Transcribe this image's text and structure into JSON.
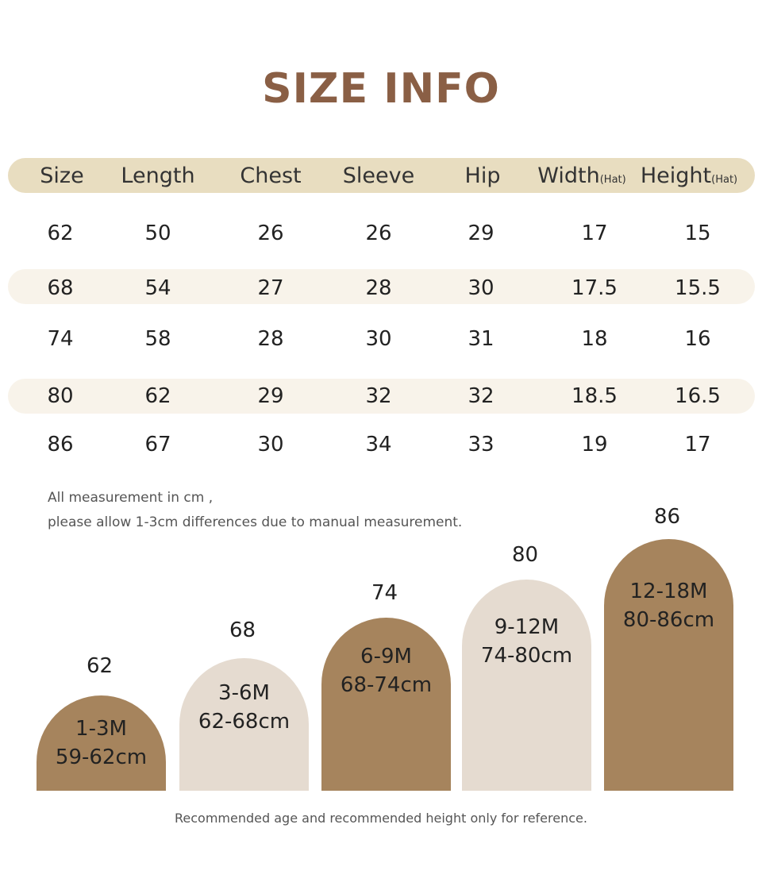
{
  "title": "SIZE INFO",
  "table": {
    "headers": [
      {
        "label": "Size",
        "sub": ""
      },
      {
        "label": "Length",
        "sub": ""
      },
      {
        "label": "Chest",
        "sub": ""
      },
      {
        "label": "Sleeve",
        "sub": ""
      },
      {
        "label": "Hip",
        "sub": ""
      },
      {
        "label": "Width",
        "sub": "(Hat)"
      },
      {
        "label": "Height",
        "sub": "(Hat)"
      }
    ],
    "rows": [
      [
        "62",
        "50",
        "26",
        "26",
        "29",
        "17",
        "15"
      ],
      [
        "68",
        "54",
        "27",
        "28",
        "30",
        "17.5",
        "15.5"
      ],
      [
        "74",
        "58",
        "28",
        "30",
        "31",
        "18",
        "16"
      ],
      [
        "80",
        "62",
        "29",
        "32",
        "32",
        "18.5",
        "16.5"
      ],
      [
        "86",
        "67",
        "30",
        "34",
        "33",
        "19",
        "17"
      ]
    ]
  },
  "notes": {
    "line1": "All measurement in cm ,",
    "line2": "please allow 1-3cm differences due to manual measurement."
  },
  "age_chart": [
    {
      "size": "62",
      "age": "1-3M",
      "height": "59-62cm",
      "tone": "dark"
    },
    {
      "size": "68",
      "age": "3-6M",
      "height": "62-68cm",
      "tone": "light"
    },
    {
      "size": "74",
      "age": "6-9M",
      "height": "68-74cm",
      "tone": "dark"
    },
    {
      "size": "80",
      "age": "9-12M",
      "height": "74-80cm",
      "tone": "light"
    },
    {
      "size": "86",
      "age": "12-18M",
      "height": "80-86cm",
      "tone": "dark"
    }
  ],
  "footer": "Recommended age and recommended height only for reference.",
  "colors": {
    "title": "#8a5f45",
    "header_bar": "#e8ddc0",
    "stripe": "#f8f3ea",
    "arch_dark": "#a6845d",
    "arch_light": "#e5dbd0"
  }
}
